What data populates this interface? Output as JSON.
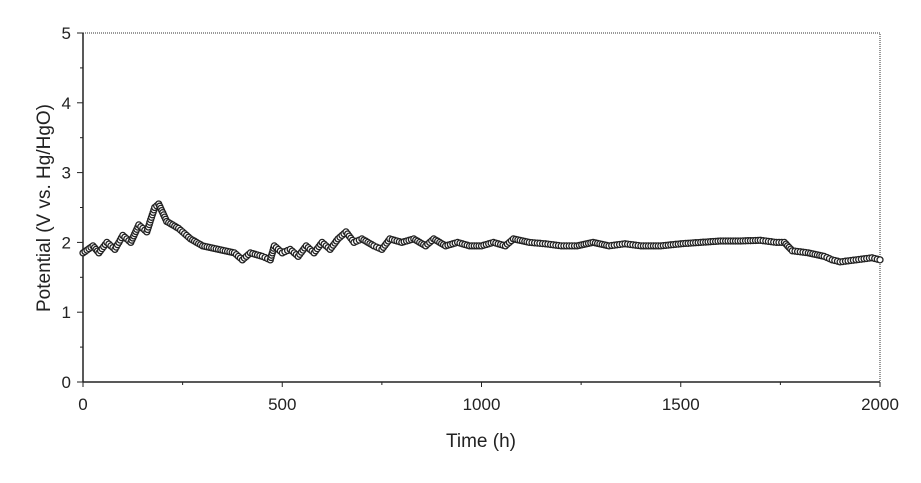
{
  "chart_data": {
    "type": "scatter",
    "title": "",
    "xlabel": "Time (h)",
    "ylabel": "Potential (V vs. Hg/HgO)",
    "xlim": [
      0,
      2000
    ],
    "ylim": [
      0,
      5
    ],
    "xticks": [
      "0",
      "500",
      "1000",
      "1500",
      "2000"
    ],
    "xtick_values": [
      0,
      500,
      1000,
      1500,
      2000
    ],
    "yticks": [
      "0",
      "1",
      "2",
      "3",
      "4",
      "5"
    ],
    "ytick_values": [
      0,
      1,
      2,
      3,
      4,
      5
    ],
    "grid": false,
    "marker": "open-circle",
    "series": [
      {
        "name": "Potential",
        "x": [
          0,
          25,
          40,
          60,
          80,
          100,
          120,
          140,
          160,
          180,
          190,
          210,
          240,
          270,
          300,
          340,
          380,
          400,
          420,
          450,
          470,
          480,
          500,
          520,
          540,
          560,
          580,
          600,
          620,
          640,
          660,
          680,
          700,
          730,
          750,
          770,
          800,
          830,
          860,
          880,
          910,
          940,
          970,
          1000,
          1030,
          1060,
          1080,
          1120,
          1160,
          1200,
          1240,
          1280,
          1320,
          1360,
          1400,
          1450,
          1500,
          1550,
          1600,
          1650,
          1700,
          1740,
          1760,
          1780,
          1820,
          1860,
          1880,
          1900,
          1940,
          1980,
          2000
        ],
        "y": [
          1.85,
          1.95,
          1.85,
          2.0,
          1.9,
          2.1,
          2.0,
          2.25,
          2.15,
          2.5,
          2.55,
          2.3,
          2.2,
          2.05,
          1.95,
          1.9,
          1.85,
          1.75,
          1.85,
          1.8,
          1.75,
          1.95,
          1.85,
          1.9,
          1.8,
          1.95,
          1.85,
          2.0,
          1.9,
          2.05,
          2.15,
          2.0,
          2.05,
          1.95,
          1.9,
          2.05,
          2.0,
          2.05,
          1.95,
          2.05,
          1.95,
          2.0,
          1.95,
          1.95,
          2.0,
          1.95,
          2.05,
          2.0,
          1.98,
          1.95,
          1.95,
          2.0,
          1.95,
          1.98,
          1.95,
          1.95,
          1.98,
          2.0,
          2.02,
          2.02,
          2.03,
          2.0,
          2.0,
          1.88,
          1.85,
          1.8,
          1.75,
          1.72,
          1.75,
          1.78,
          1.75
        ]
      }
    ]
  }
}
